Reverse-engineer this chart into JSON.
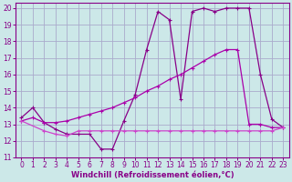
{
  "bg_color": "#cce8e8",
  "grid_color": "#aaaacc",
  "line_color1": "#880088",
  "line_color2": "#aa00aa",
  "line_color3": "#cc44cc",
  "xlabel": "Windchill (Refroidissement éolien,°C)",
  "xlim": [
    -0.5,
    23.5
  ],
  "ylim": [
    11,
    20.3
  ],
  "yticks": [
    11,
    12,
    13,
    14,
    15,
    16,
    17,
    18,
    19,
    20
  ],
  "xticks": [
    0,
    1,
    2,
    3,
    4,
    5,
    6,
    7,
    8,
    9,
    10,
    11,
    12,
    13,
    14,
    15,
    16,
    17,
    18,
    19,
    20,
    21,
    22,
    23
  ],
  "series1_x": [
    0,
    1,
    2,
    3,
    4,
    5,
    6,
    7,
    8,
    9,
    10,
    11,
    12,
    13,
    14,
    15,
    16,
    17,
    18,
    19,
    20,
    21,
    22,
    23
  ],
  "series1_y": [
    13.4,
    14.0,
    13.1,
    12.7,
    12.4,
    12.4,
    12.4,
    11.5,
    11.5,
    13.2,
    14.8,
    17.5,
    19.8,
    19.3,
    14.5,
    19.8,
    20.0,
    19.8,
    20.0,
    20.0,
    20.0,
    16.0,
    13.3,
    12.8
  ],
  "series2_x": [
    0,
    1,
    2,
    3,
    4,
    5,
    6,
    7,
    8,
    9,
    10,
    11,
    12,
    13,
    14,
    15,
    16,
    17,
    18,
    19,
    20,
    21,
    22,
    23
  ],
  "series2_y": [
    13.2,
    13.4,
    13.1,
    13.1,
    13.2,
    13.4,
    13.6,
    13.8,
    14.0,
    14.3,
    14.6,
    15.0,
    15.3,
    15.7,
    16.0,
    16.4,
    16.8,
    17.2,
    17.5,
    17.5,
    13.0,
    13.0,
    12.8,
    12.8
  ],
  "series3_x": [
    0,
    2,
    3,
    4,
    5,
    6,
    7,
    8,
    9,
    10,
    11,
    12,
    13,
    14,
    15,
    16,
    17,
    18,
    19,
    20,
    21,
    22,
    23
  ],
  "series3_y": [
    13.2,
    12.6,
    12.4,
    12.3,
    12.6,
    12.6,
    12.6,
    12.6,
    12.6,
    12.6,
    12.6,
    12.6,
    12.6,
    12.6,
    12.6,
    12.6,
    12.6,
    12.6,
    12.6,
    12.6,
    12.6,
    12.6,
    12.8
  ]
}
